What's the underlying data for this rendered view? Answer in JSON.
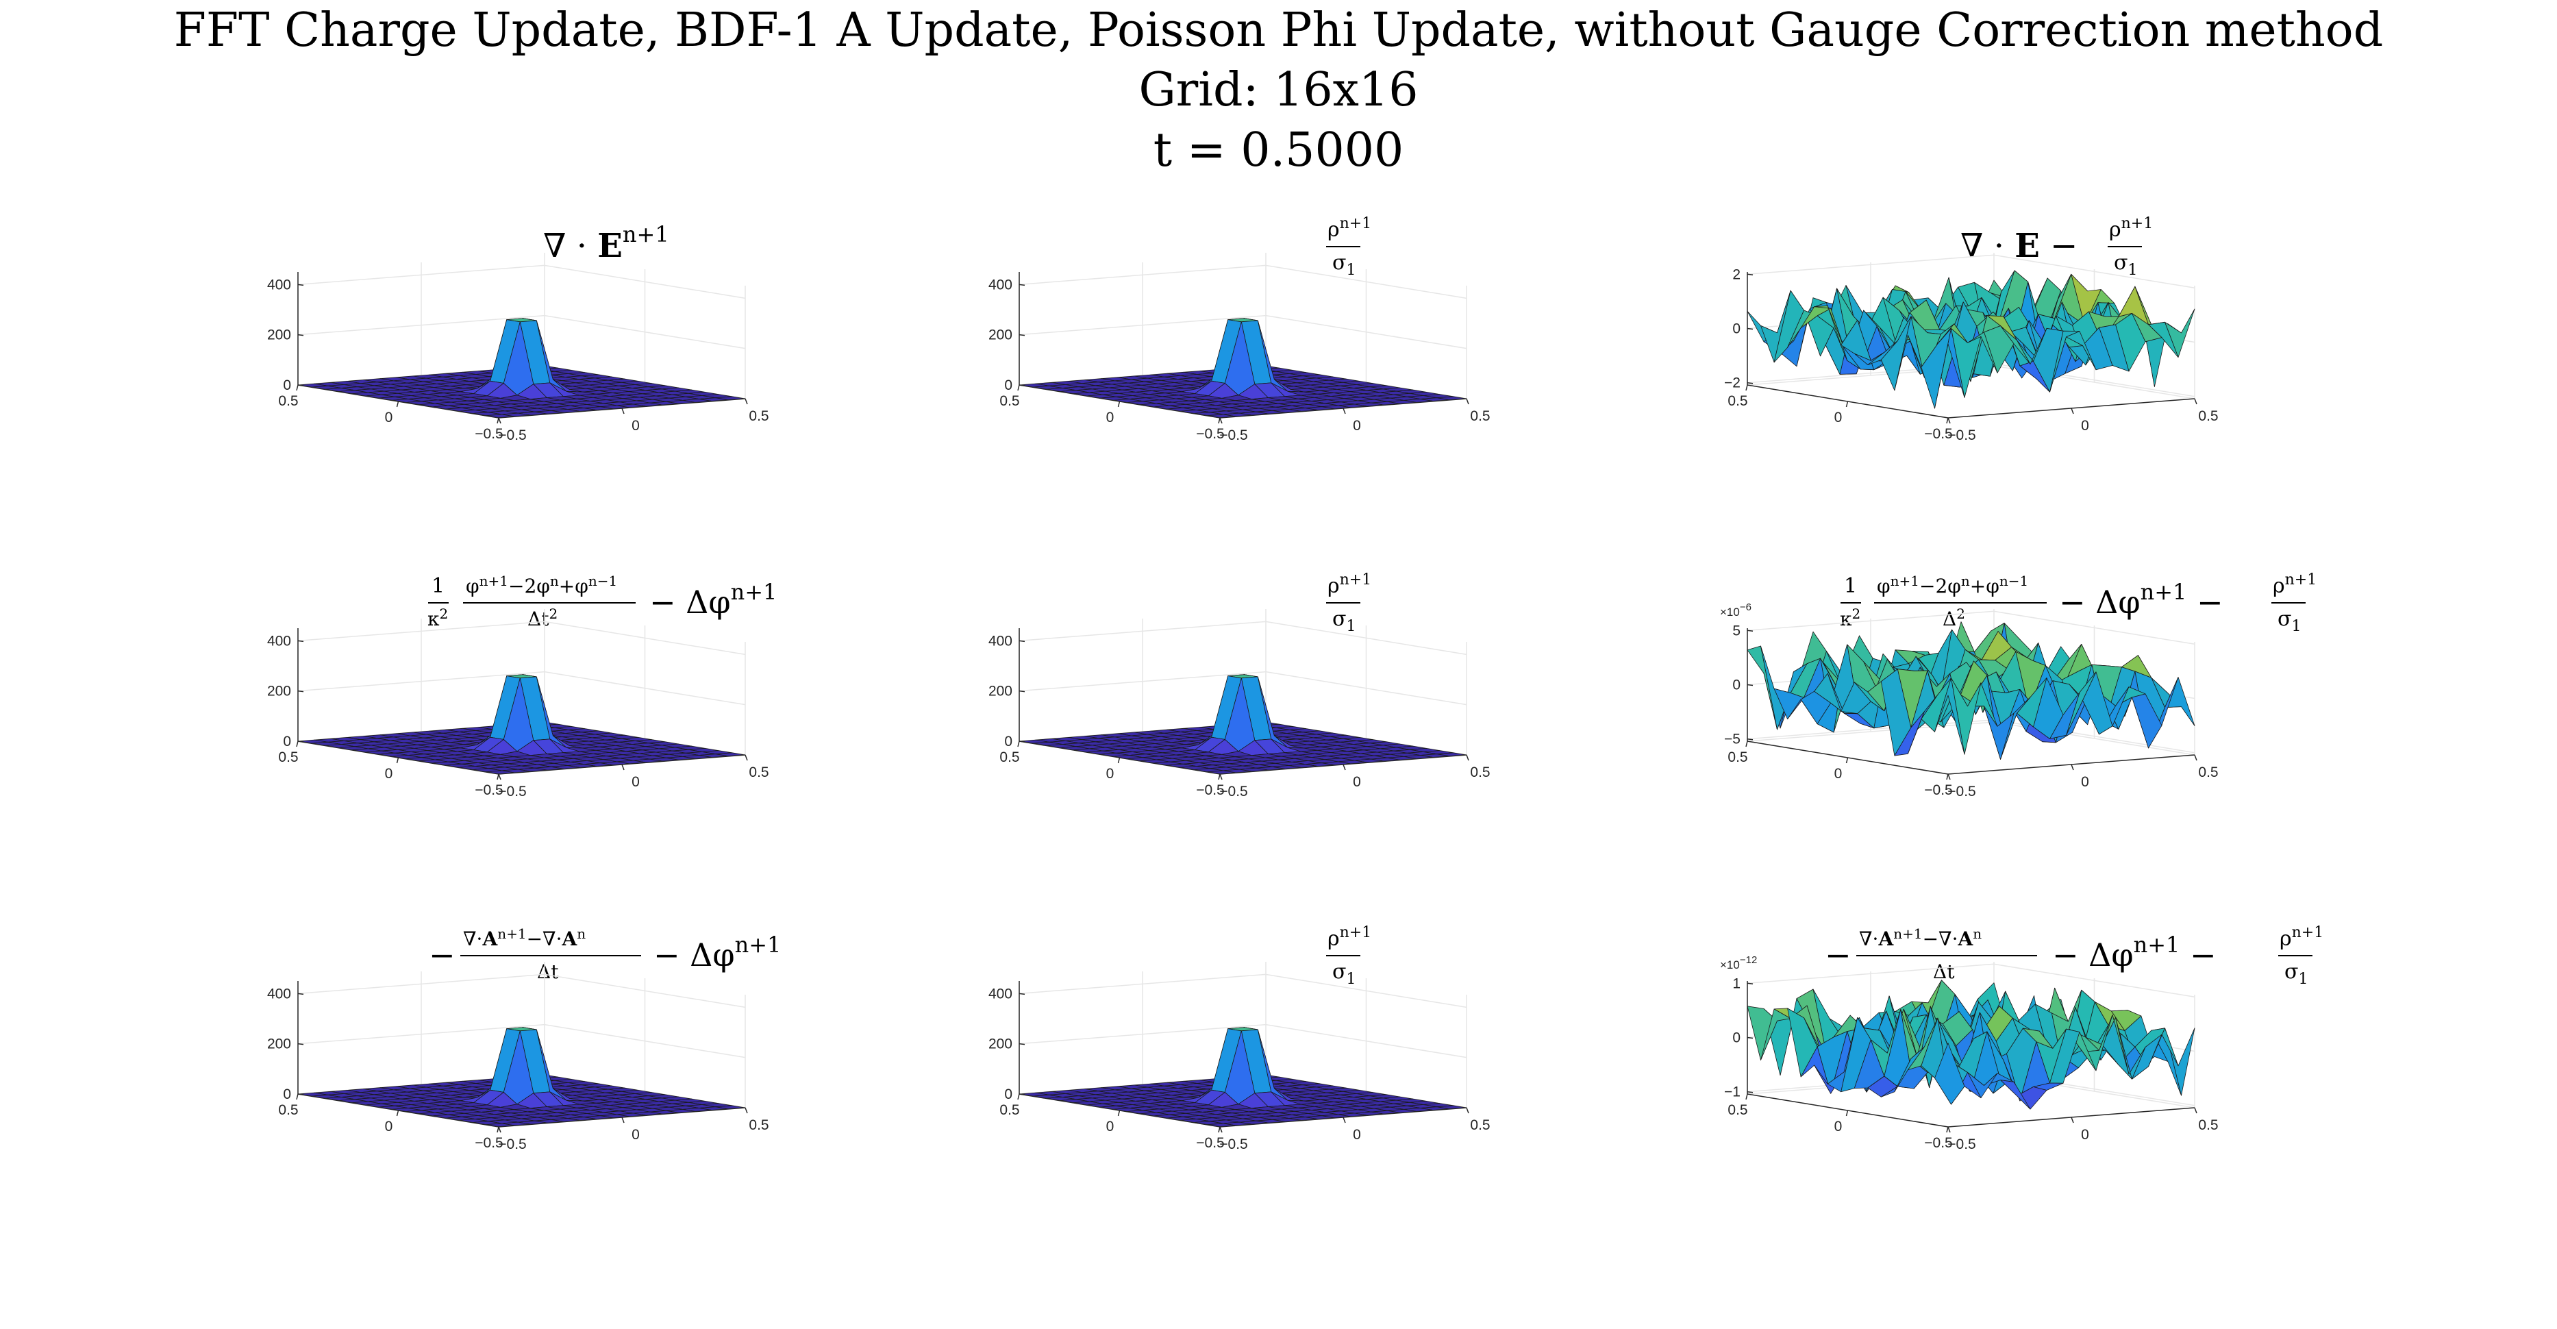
{
  "figure": {
    "title_lines": [
      "FFT Charge Update, BDF-1 A Update, Poisson Phi Update, without Gauge Correction method",
      "Grid: 16x16",
      "t = 0.5000"
    ]
  },
  "colors": {
    "peak_colormap": [
      "#3e26a8",
      "#4a3fd8",
      "#2f6cf0",
      "#1a9ae0",
      "#25b9b2",
      "#72c35c",
      "#e2c22b",
      "#f9fb0e"
    ],
    "mesh_edge": "#1a1a1a",
    "axis": "#262626",
    "grid": "#e6e6e6"
  },
  "chart_data": [
    {
      "type": "surface",
      "title": "∇ · E^{n+1}",
      "title_parts": {
        "main": "∇ · ",
        "bold": "E",
        "sup": "n+1"
      },
      "grid_size": [
        16,
        16
      ],
      "x": [
        -0.5,
        0.5
      ],
      "y": [
        -0.5,
        0.5
      ],
      "zlim": [
        0,
        450
      ],
      "z_ticks": [
        "0",
        "200",
        "400"
      ],
      "x_ticks": [
        "0.5",
        "0",
        "−0.5"
      ],
      "y_ticks": [
        "−0.5",
        "0",
        "0.5"
      ],
      "z_exponent": "",
      "shape": "gaussian_peak",
      "peak_value": 450,
      "peak_location": [
        0,
        0
      ]
    },
    {
      "type": "surface",
      "title": "ρ^{n+1} / σ1",
      "title_parts": {
        "num": "ρ",
        "num_sup": "n+1",
        "den": "σ",
        "den_sub": "1"
      },
      "grid_size": [
        16,
        16
      ],
      "x": [
        -0.5,
        0.5
      ],
      "y": [
        -0.5,
        0.5
      ],
      "zlim": [
        0,
        450
      ],
      "z_ticks": [
        "0",
        "200",
        "400"
      ],
      "x_ticks": [
        "0.5",
        "0",
        "−0.5"
      ],
      "y_ticks": [
        "−0.5",
        "0",
        "0.5"
      ],
      "z_exponent": "",
      "shape": "gaussian_peak",
      "peak_value": 450,
      "peak_location": [
        0,
        0
      ]
    },
    {
      "type": "surface",
      "title": "∇ · E − ρ^{n+1}/σ1",
      "grid_size": [
        16,
        16
      ],
      "x": [
        -0.5,
        0.5
      ],
      "y": [
        -0.5,
        0.5
      ],
      "zlim": [
        -2,
        2
      ],
      "z_ticks": [
        "−2",
        "0",
        "2"
      ],
      "x_ticks": [
        "0.5",
        "0",
        "−0.5"
      ],
      "y_ticks": [
        "−0.5",
        "0",
        "0.5"
      ],
      "z_exponent": "",
      "shape": "noise",
      "amplitude": 2
    },
    {
      "type": "surface",
      "title": "(1/κ²)(φ^{n+1} − 2φ^n + φ^{n−1})/Δt² − Δφ^{n+1}",
      "grid_size": [
        16,
        16
      ],
      "x": [
        -0.5,
        0.5
      ],
      "y": [
        -0.5,
        0.5
      ],
      "zlim": [
        0,
        450
      ],
      "z_ticks": [
        "0",
        "200",
        "400"
      ],
      "x_ticks": [
        "0.5",
        "0",
        "−0.5"
      ],
      "y_ticks": [
        "−0.5",
        "0",
        "0.5"
      ],
      "z_exponent": "",
      "shape": "gaussian_peak",
      "peak_value": 450,
      "peak_location": [
        0,
        0
      ]
    },
    {
      "type": "surface",
      "title": "ρ^{n+1} / σ1",
      "grid_size": [
        16,
        16
      ],
      "x": [
        -0.5,
        0.5
      ],
      "y": [
        -0.5,
        0.5
      ],
      "zlim": [
        0,
        450
      ],
      "z_ticks": [
        "0",
        "200",
        "400"
      ],
      "x_ticks": [
        "0.5",
        "0",
        "−0.5"
      ],
      "y_ticks": [
        "−0.5",
        "0",
        "0.5"
      ],
      "z_exponent": "",
      "shape": "gaussian_peak",
      "peak_value": 450,
      "peak_location": [
        0,
        0
      ]
    },
    {
      "type": "surface",
      "title": "(1/κ²)(φ^{n+1} − 2φ^n + φ^{n−1})/Δ² − Δφ^{n+1} − ρ^{n+1}/σ1",
      "grid_size": [
        16,
        16
      ],
      "x": [
        -0.5,
        0.5
      ],
      "y": [
        -0.5,
        0.5
      ],
      "zlim": [
        -5e-06,
        5e-06
      ],
      "z_ticks": [
        "−5",
        "0",
        "5"
      ],
      "x_ticks": [
        "0.5",
        "0",
        "−0.5"
      ],
      "y_ticks": [
        "−0.5",
        "0",
        "0.5"
      ],
      "z_exponent": "−6",
      "shape": "noise",
      "amplitude": 5e-06
    },
    {
      "type": "surface",
      "title": "−(∇·A^{n+1} − ∇·A^n)/Δt − Δφ^{n+1}",
      "grid_size": [
        16,
        16
      ],
      "x": [
        -0.5,
        0.5
      ],
      "y": [
        -0.5,
        0.5
      ],
      "zlim": [
        0,
        450
      ],
      "z_ticks": [
        "0",
        "200",
        "400"
      ],
      "x_ticks": [
        "0.5",
        "0",
        "−0.5"
      ],
      "y_ticks": [
        "−0.5",
        "0",
        "0.5"
      ],
      "z_exponent": "",
      "shape": "gaussian_peak",
      "peak_value": 450,
      "peak_location": [
        0,
        0
      ]
    },
    {
      "type": "surface",
      "title": "ρ^{n+1} / σ1",
      "grid_size": [
        16,
        16
      ],
      "x": [
        -0.5,
        0.5
      ],
      "y": [
        -0.5,
        0.5
      ],
      "zlim": [
        0,
        450
      ],
      "z_ticks": [
        "0",
        "200",
        "400"
      ],
      "x_ticks": [
        "0.5",
        "0",
        "−0.5"
      ],
      "y_ticks": [
        "−0.5",
        "0",
        "0.5"
      ],
      "z_exponent": "",
      "shape": "gaussian_peak",
      "peak_value": 450,
      "peak_location": [
        0,
        0
      ]
    },
    {
      "type": "surface",
      "title": "−(∇·A^{n+1} − ∇·A^n)/Δt − Δφ^{n+1} − ρ^{n+1}/σ1",
      "grid_size": [
        16,
        16
      ],
      "x": [
        -0.5,
        0.5
      ],
      "y": [
        -0.5,
        0.5
      ],
      "zlim": [
        -1e-12,
        1e-12
      ],
      "z_ticks": [
        "−1",
        "0",
        "1"
      ],
      "x_ticks": [
        "0.5",
        "0",
        "−0.5"
      ],
      "y_ticks": [
        "−0.5",
        "0",
        "0.5"
      ],
      "z_exponent": "−12",
      "shape": "noise",
      "amplitude": 1e-12
    }
  ]
}
